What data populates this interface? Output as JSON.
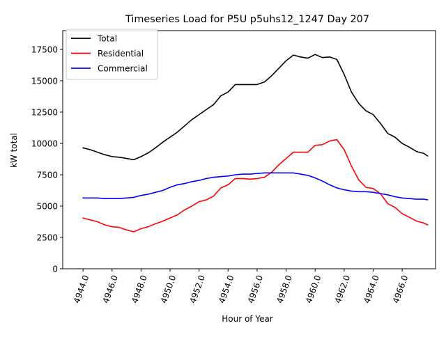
{
  "chart_data": {
    "type": "line",
    "title": "Timeseries Load for P5U p5uhs12_1247  Day 207",
    "xlabel": "Hour of Year",
    "ylabel": "kW total",
    "xlim": [
      4942.6,
      4968.3
    ],
    "ylim": [
      0,
      19000
    ],
    "xticks": [
      4944.0,
      4946.0,
      4948.0,
      4950.0,
      4952.0,
      4954.0,
      4956.0,
      4958.0,
      4960.0,
      4962.0,
      4964.0,
      4966.0
    ],
    "xtick_labels": [
      "4944.0",
      "4946.0",
      "4948.0",
      "4950.0",
      "4952.0",
      "4954.0",
      "4956.0",
      "4958.0",
      "4960.0",
      "4962.0",
      "4964.0",
      "4966.0"
    ],
    "yticks": [
      0,
      2500,
      5000,
      7500,
      10000,
      12500,
      15000,
      17500
    ],
    "ytick_labels": [
      "0",
      "2500",
      "5000",
      "7500",
      "10000",
      "12500",
      "15000",
      "17500"
    ],
    "legend_position": "top-left",
    "x": [
      4944,
      4944.5,
      4945,
      4945.5,
      4946,
      4946.5,
      4947,
      4947.5,
      4948,
      4948.5,
      4949,
      4949.5,
      4950,
      4950.5,
      4951,
      4951.5,
      4952,
      4952.5,
      4953,
      4953.5,
      4954,
      4954.5,
      4955,
      4955.5,
      4956,
      4956.5,
      4957,
      4957.5,
      4958,
      4958.5,
      4959,
      4959.5,
      4960,
      4960.5,
      4961,
      4961.5,
      4962,
      4962.5,
      4963,
      4963.5,
      4964,
      4964.5,
      4965,
      4965.5,
      4966,
      4966.5,
      4967,
      4967.5,
      4967.75
    ],
    "series": [
      {
        "name": "Total",
        "color": "#000000",
        "values": [
          9650,
          9500,
          9300,
          9100,
          8950,
          8900,
          8800,
          8700,
          8950,
          9250,
          9650,
          10100,
          10500,
          10900,
          11400,
          11900,
          12300,
          12700,
          13100,
          13800,
          14100,
          14700,
          14700,
          14700,
          14700,
          14900,
          15400,
          16000,
          16600,
          17050,
          16900,
          16800,
          17100,
          16850,
          16900,
          16700,
          15500,
          14100,
          13200,
          12600,
          12300,
          11600,
          10800,
          10500,
          10000,
          9700,
          9350,
          9200,
          9000
        ]
      },
      {
        "name": "Residential",
        "color": "#ff0000",
        "values": [
          4050,
          3900,
          3750,
          3500,
          3350,
          3300,
          3100,
          2950,
          3200,
          3350,
          3600,
          3800,
          4050,
          4300,
          4700,
          5000,
          5350,
          5500,
          5800,
          6450,
          6700,
          7200,
          7200,
          7150,
          7200,
          7300,
          7700,
          8300,
          8800,
          9300,
          9300,
          9300,
          9850,
          9900,
          10200,
          10300,
          9500,
          8200,
          7100,
          6500,
          6400,
          6000,
          5200,
          4900,
          4400,
          4100,
          3800,
          3650,
          3500
        ]
      },
      {
        "name": "Commercial",
        "color": "#0000ff",
        "values": [
          5650,
          5650,
          5650,
          5600,
          5600,
          5600,
          5650,
          5700,
          5850,
          5950,
          6100,
          6250,
          6500,
          6700,
          6800,
          6950,
          7050,
          7200,
          7300,
          7350,
          7400,
          7500,
          7550,
          7550,
          7600,
          7650,
          7650,
          7650,
          7650,
          7650,
          7550,
          7450,
          7250,
          7000,
          6700,
          6450,
          6300,
          6200,
          6150,
          6150,
          6100,
          6000,
          5900,
          5750,
          5650,
          5600,
          5550,
          5550,
          5500
        ]
      }
    ]
  }
}
